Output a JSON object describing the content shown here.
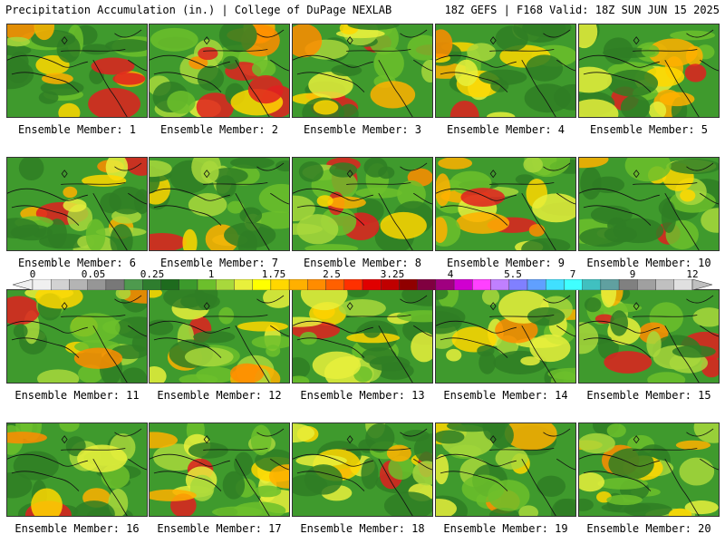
{
  "header": {
    "left": "Precipitation Accumulation (in.) | College of DuPage NEXLAB",
    "right": "18Z GEFS | F168 Valid: 18Z SUN JUN 15 2025"
  },
  "panels": [
    {
      "label": "Ensemble Member: 1"
    },
    {
      "label": "Ensemble Member: 2"
    },
    {
      "label": "Ensemble Member: 3"
    },
    {
      "label": "Ensemble Member: 4"
    },
    {
      "label": "Ensemble Member: 5"
    },
    {
      "label": "Ensemble Member: 6"
    },
    {
      "label": "Ensemble Member: 7"
    },
    {
      "label": "Ensemble Member: 8"
    },
    {
      "label": "Ensemble Member: 9"
    },
    {
      "label": "Ensemble Member: 10"
    },
    {
      "label": "Ensemble Member: 11"
    },
    {
      "label": "Ensemble Member: 12"
    },
    {
      "label": "Ensemble Member: 13"
    },
    {
      "label": "Ensemble Member: 14"
    },
    {
      "label": "Ensemble Member: 15"
    },
    {
      "label": "Ensemble Member: 16"
    },
    {
      "label": "Ensemble Member: 17"
    },
    {
      "label": "Ensemble Member: 18"
    },
    {
      "label": "Ensemble Member: 19"
    },
    {
      "label": "Ensemble Member: 20"
    }
  ],
  "colorbar": {
    "labels": [
      "0",
      "0.05",
      "0.25",
      "1",
      "1.75",
      "2.5",
      "3.25",
      "4",
      "5.5",
      "7",
      "9",
      "12"
    ],
    "colors": [
      "#f0f0f0",
      "#d2d2d2",
      "#b4b4b4",
      "#969696",
      "#787878",
      "#4e9a4e",
      "#2e7d2e",
      "#1e6b1e",
      "#3c9a2c",
      "#6cbf2c",
      "#a8d83c",
      "#e8f03c",
      "#ffff00",
      "#ffd700",
      "#ffb000",
      "#ff8c00",
      "#ff6000",
      "#ff3000",
      "#e00000",
      "#c00000",
      "#900000",
      "#800040",
      "#a00080",
      "#d000d0",
      "#ff40ff",
      "#c080ff",
      "#8080ff",
      "#60a0ff",
      "#40e0ff",
      "#40ffff",
      "#40c0c0",
      "#60a0a0",
      "#808080",
      "#a0a0a0",
      "#c0c0c0",
      "#e0e0e0"
    ]
  }
}
